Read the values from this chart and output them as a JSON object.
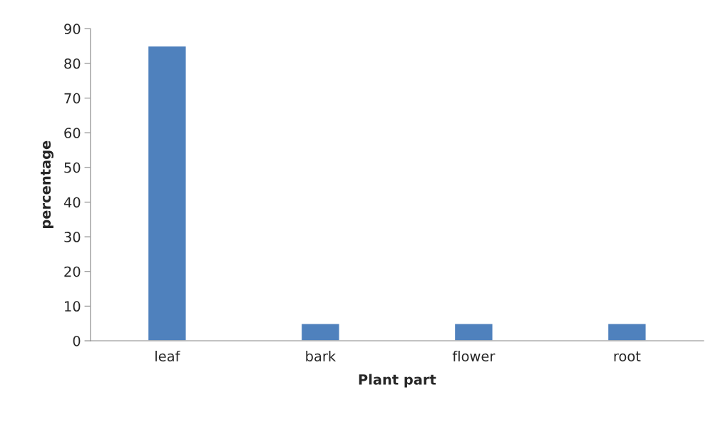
{
  "chart_data": {
    "type": "bar",
    "xlabel": "Plant part",
    "ylabel": "percentage",
    "categories": [
      "leaf",
      "bark",
      "flower",
      "root"
    ],
    "values": [
      85,
      5,
      5,
      5
    ],
    "color": "#4f81bd",
    "ylim": [
      0,
      90
    ],
    "yticks": [
      0,
      10,
      20,
      30,
      40,
      50,
      60,
      70,
      80,
      90
    ],
    "grid": false,
    "legend": false
  }
}
